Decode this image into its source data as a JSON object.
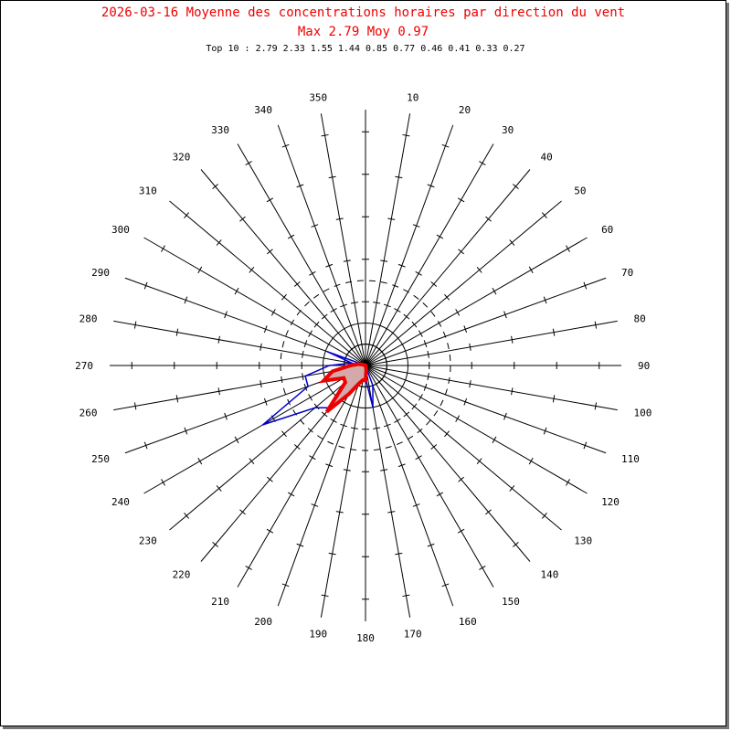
{
  "title": "2026-03-16 Moyenne des concentrations horaires par direction du vent",
  "subtitle": "Max 2.79 Moy 0.97",
  "top10": "Top 10 : 2.79 2.33 1.55 1.44 0.85 0.77 0.46 0.41 0.33 0.27",
  "colors": {
    "title": "#ee0000",
    "series_max": "#0000cc",
    "series_mean_stroke": "#ee0000",
    "series_mean_fill": "#d4a9a9"
  },
  "chart_data": {
    "type": "polar",
    "direction_labels": [
      "10",
      "20",
      "30",
      "40",
      "50",
      "60",
      "70",
      "80",
      "90",
      "100",
      "110",
      "120",
      "130",
      "140",
      "150",
      "160",
      "170",
      "180",
      "190",
      "200",
      "210",
      "220",
      "230",
      "240",
      "250",
      "260",
      "270",
      "280",
      "290",
      "300",
      "310",
      "320",
      "330",
      "340",
      "350"
    ],
    "reference_circles": [
      {
        "value": 1,
        "style": "solid"
      },
      {
        "value": 2,
        "style": "dashed"
      }
    ],
    "series": [
      {
        "style": "outline",
        "points": [
          {
            "dir": 0,
            "value": 0.0
          },
          {
            "dir": 160,
            "value": 0.5
          },
          {
            "dir": 170,
            "value": 1.0
          },
          {
            "dir": 180,
            "value": 0.3
          },
          {
            "dir": 190,
            "value": 0.3
          },
          {
            "dir": 200,
            "value": 0.3
          },
          {
            "dir": 210,
            "value": 0.4
          },
          {
            "dir": 220,
            "value": 1.3
          },
          {
            "dir": 230,
            "value": 1.55
          },
          {
            "dir": 240,
            "value": 2.79
          },
          {
            "dir": 250,
            "value": 1.44
          },
          {
            "dir": 260,
            "value": 1.44
          },
          {
            "dir": 270,
            "value": 0.85
          },
          {
            "dir": 280,
            "value": 0.33
          },
          {
            "dir": 290,
            "value": 0.95
          }
        ]
      },
      {
        "style": "filled",
        "points": [
          {
            "dir": 0,
            "value": 0.0
          },
          {
            "dir": 170,
            "value": 0.1
          },
          {
            "dir": 180,
            "value": 0.35
          },
          {
            "dir": 190,
            "value": 0.35
          },
          {
            "dir": 200,
            "value": 0.45
          },
          {
            "dir": 210,
            "value": 0.77
          },
          {
            "dir": 220,
            "value": 1.42
          },
          {
            "dir": 230,
            "value": 0.62
          },
          {
            "dir": 240,
            "value": 0.59
          },
          {
            "dir": 250,
            "value": 1.05
          },
          {
            "dir": 260,
            "value": 0.79
          },
          {
            "dir": 270,
            "value": 0.35
          },
          {
            "dir": 280,
            "value": 0.18
          },
          {
            "dir": 290,
            "value": 0.05
          }
        ]
      }
    ]
  }
}
